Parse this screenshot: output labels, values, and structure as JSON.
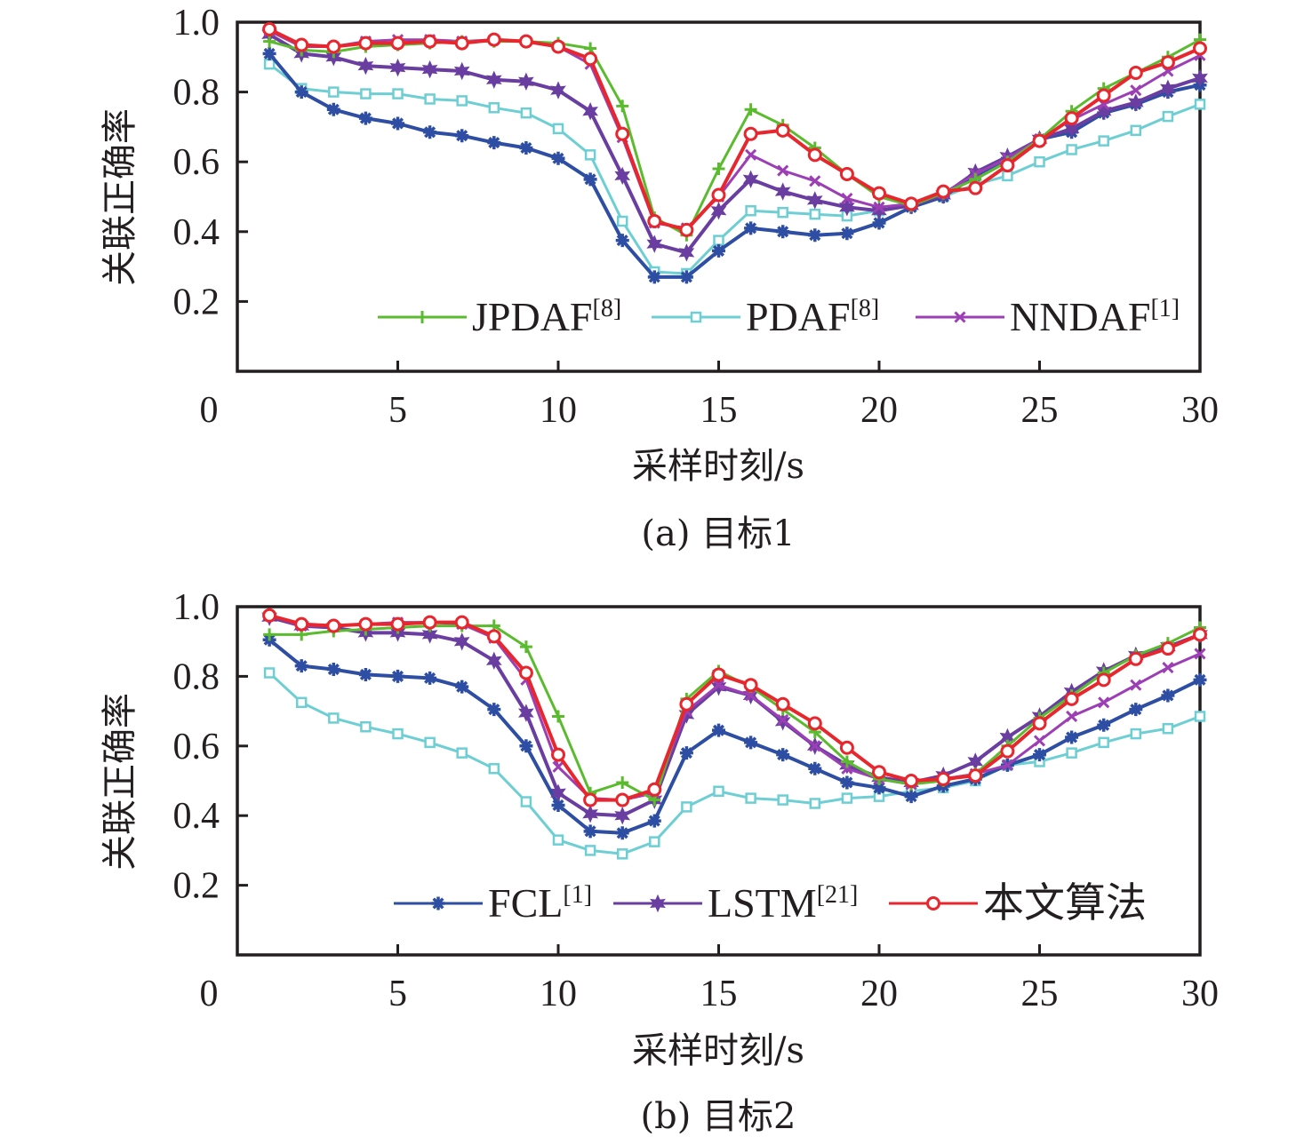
{
  "figure": {
    "panels": [
      "(a) 目标1",
      "(b) 目标2"
    ]
  },
  "chart_data": [
    {
      "type": "line",
      "title": "(a) 目标1",
      "xlabel": "采样时刻/s",
      "ylabel": "关联正确率",
      "xlim": [
        0,
        30
      ],
      "ylim": [
        0,
        1.0
      ],
      "xticks": [
        0,
        5,
        10,
        15,
        20,
        25,
        30
      ],
      "xtick_labels": [
        "0",
        "5",
        "10",
        "15",
        "20",
        "25",
        "30"
      ],
      "yticks": [
        0.2,
        0.4,
        0.6,
        0.8,
        1.0
      ],
      "ytick_labels": [
        "0.2",
        "0.4",
        "0.6",
        "0.8",
        "1.0"
      ],
      "grid": false,
      "legend": {
        "placement": "bottom-right",
        "entries": [
          {
            "name": "JPDAF",
            "ref": "[8]"
          },
          {
            "name": "PDAF",
            "ref": "[8]"
          },
          {
            "name": "NNDAF",
            "ref": "[1]"
          }
        ]
      },
      "x": [
        1,
        2,
        3,
        4,
        5,
        6,
        7,
        8,
        9,
        10,
        11,
        12,
        13,
        14,
        15,
        16,
        17,
        18,
        19,
        20,
        21,
        22,
        23,
        24,
        25,
        26,
        27,
        28,
        29,
        30
      ],
      "series": [
        {
          "name": "JPDAF[8]",
          "color": "#5bbb2f",
          "marker": "plus",
          "in_legend": true,
          "values": [
            0.945,
            0.92,
            0.915,
            0.93,
            0.935,
            0.94,
            0.945,
            0.945,
            0.945,
            0.94,
            0.925,
            0.76,
            0.44,
            0.39,
            0.58,
            0.75,
            0.705,
            0.64,
            0.565,
            0.5,
            0.475,
            0.51,
            0.55,
            0.6,
            0.665,
            0.745,
            0.81,
            0.855,
            0.9,
            0.95
          ]
        },
        {
          "name": "PDAF[8]",
          "color": "#6dcfd3",
          "marker": "square",
          "in_legend": true,
          "values": [
            0.88,
            0.81,
            0.8,
            0.795,
            0.795,
            0.78,
            0.775,
            0.755,
            0.74,
            0.695,
            0.62,
            0.43,
            0.285,
            0.28,
            0.375,
            0.46,
            0.455,
            0.45,
            0.445,
            0.46,
            0.475,
            0.5,
            0.535,
            0.56,
            0.6,
            0.635,
            0.66,
            0.69,
            0.73,
            0.765
          ]
        },
        {
          "name": "NNDAF[1]",
          "color": "#9c3fb5",
          "marker": "x",
          "in_legend": true,
          "values": [
            0.975,
            0.93,
            0.93,
            0.945,
            0.95,
            0.95,
            0.945,
            0.95,
            0.945,
            0.93,
            0.88,
            0.67,
            0.425,
            0.41,
            0.5,
            0.62,
            0.575,
            0.545,
            0.495,
            0.47,
            0.48,
            0.51,
            0.565,
            0.61,
            0.665,
            0.72,
            0.765,
            0.805,
            0.86,
            0.905
          ]
        },
        {
          "name": "FCL[1]",
          "color": "#2e4ea3",
          "marker": "asterisk",
          "in_legend": false,
          "values": [
            0.91,
            0.8,
            0.75,
            0.725,
            0.71,
            0.685,
            0.675,
            0.655,
            0.64,
            0.61,
            0.55,
            0.375,
            0.27,
            0.27,
            0.345,
            0.41,
            0.4,
            0.39,
            0.395,
            0.425,
            0.47,
            0.5,
            0.56,
            0.61,
            0.665,
            0.685,
            0.74,
            0.765,
            0.8,
            0.82
          ]
        },
        {
          "name": "LSTM[21]",
          "color": "#6a3ea1",
          "marker": "star",
          "in_legend": false,
          "values": [
            0.965,
            0.91,
            0.9,
            0.875,
            0.87,
            0.865,
            0.86,
            0.835,
            0.83,
            0.805,
            0.745,
            0.56,
            0.365,
            0.34,
            0.46,
            0.55,
            0.515,
            0.49,
            0.47,
            0.46,
            0.475,
            0.505,
            0.57,
            0.615,
            0.665,
            0.695,
            0.745,
            0.77,
            0.81,
            0.84
          ]
        },
        {
          "name": "本文算法",
          "color": "#e8262d",
          "marker": "circle",
          "in_legend": false,
          "values": [
            0.98,
            0.935,
            0.93,
            0.94,
            0.94,
            0.945,
            0.94,
            0.95,
            0.945,
            0.93,
            0.895,
            0.68,
            0.43,
            0.405,
            0.505,
            0.68,
            0.69,
            0.62,
            0.565,
            0.51,
            0.48,
            0.515,
            0.525,
            0.59,
            0.66,
            0.725,
            0.79,
            0.855,
            0.885,
            0.925
          ]
        }
      ]
    },
    {
      "type": "line",
      "title": "(b) 目标2",
      "xlabel": "采样时刻/s",
      "ylabel": "关联正确率",
      "xlim": [
        0,
        30
      ],
      "ylim": [
        0,
        1.0
      ],
      "xticks": [
        0,
        5,
        10,
        15,
        20,
        25,
        30
      ],
      "xtick_labels": [
        "0",
        "5",
        "10",
        "15",
        "20",
        "25",
        "30"
      ],
      "yticks": [
        0.2,
        0.4,
        0.6,
        0.8,
        1.0
      ],
      "ytick_labels": [
        "0.2",
        "0.4",
        "0.6",
        "0.8",
        "1.0"
      ],
      "grid": false,
      "legend": {
        "placement": "bottom-right",
        "entries": [
          {
            "name": "FCL",
            "ref": "[1]"
          },
          {
            "name": "LSTM",
            "ref": "[21]"
          },
          {
            "name": "本文算法",
            "ref": ""
          }
        ]
      },
      "x": [
        1,
        2,
        3,
        4,
        5,
        6,
        7,
        8,
        9,
        10,
        11,
        12,
        13,
        14,
        15,
        16,
        17,
        18,
        19,
        20,
        21,
        22,
        23,
        24,
        25,
        26,
        27,
        28,
        29,
        30
      ],
      "series": [
        {
          "name": "JPDAF[8]",
          "color": "#5bbb2f",
          "marker": "plus",
          "in_legend": false,
          "values": [
            0.92,
            0.92,
            0.93,
            0.935,
            0.94,
            0.945,
            0.945,
            0.945,
            0.885,
            0.685,
            0.465,
            0.495,
            0.445,
            0.735,
            0.815,
            0.77,
            0.705,
            0.64,
            0.555,
            0.505,
            0.49,
            0.5,
            0.52,
            0.6,
            0.68,
            0.745,
            0.81,
            0.86,
            0.895,
            0.94
          ]
        },
        {
          "name": "PDAF[8]",
          "color": "#6dcfd3",
          "marker": "square",
          "in_legend": false,
          "values": [
            0.81,
            0.725,
            0.68,
            0.655,
            0.635,
            0.61,
            0.58,
            0.535,
            0.44,
            0.33,
            0.3,
            0.29,
            0.325,
            0.425,
            0.47,
            0.45,
            0.445,
            0.435,
            0.45,
            0.455,
            0.47,
            0.48,
            0.5,
            0.545,
            0.555,
            0.58,
            0.61,
            0.635,
            0.65,
            0.685
          ]
        },
        {
          "name": "NNDAF[1]",
          "color": "#9c3fb5",
          "marker": "x",
          "in_legend": false,
          "values": [
            0.975,
            0.945,
            0.945,
            0.95,
            0.955,
            0.955,
            0.95,
            0.91,
            0.79,
            0.54,
            0.45,
            0.445,
            0.465,
            0.7,
            0.775,
            0.745,
            0.675,
            0.6,
            0.535,
            0.505,
            0.49,
            0.505,
            0.52,
            0.545,
            0.615,
            0.685,
            0.725,
            0.775,
            0.825,
            0.865
          ]
        },
        {
          "name": "FCL[1]",
          "color": "#2e4ea3",
          "marker": "asterisk",
          "in_legend": true,
          "values": [
            0.905,
            0.83,
            0.82,
            0.805,
            0.8,
            0.795,
            0.77,
            0.705,
            0.6,
            0.43,
            0.355,
            0.35,
            0.385,
            0.58,
            0.645,
            0.61,
            0.575,
            0.535,
            0.495,
            0.48,
            0.455,
            0.485,
            0.505,
            0.545,
            0.575,
            0.625,
            0.66,
            0.705,
            0.745,
            0.79
          ]
        },
        {
          "name": "LSTM[21]",
          "color": "#6a3ea1",
          "marker": "star",
          "in_legend": true,
          "values": [
            0.97,
            0.945,
            0.94,
            0.925,
            0.925,
            0.92,
            0.9,
            0.845,
            0.695,
            0.465,
            0.405,
            0.4,
            0.445,
            0.69,
            0.77,
            0.745,
            0.67,
            0.6,
            0.545,
            0.51,
            0.495,
            0.515,
            0.555,
            0.625,
            0.685,
            0.755,
            0.815,
            0.86,
            0.885,
            0.92
          ]
        },
        {
          "name": "本文算法",
          "color": "#e8262d",
          "marker": "circle",
          "in_legend": true,
          "values": [
            0.975,
            0.95,
            0.945,
            0.95,
            0.95,
            0.955,
            0.955,
            0.915,
            0.81,
            0.575,
            0.445,
            0.445,
            0.475,
            0.72,
            0.805,
            0.775,
            0.72,
            0.665,
            0.595,
            0.525,
            0.5,
            0.505,
            0.515,
            0.585,
            0.665,
            0.735,
            0.79,
            0.85,
            0.88,
            0.92
          ]
        }
      ]
    }
  ]
}
